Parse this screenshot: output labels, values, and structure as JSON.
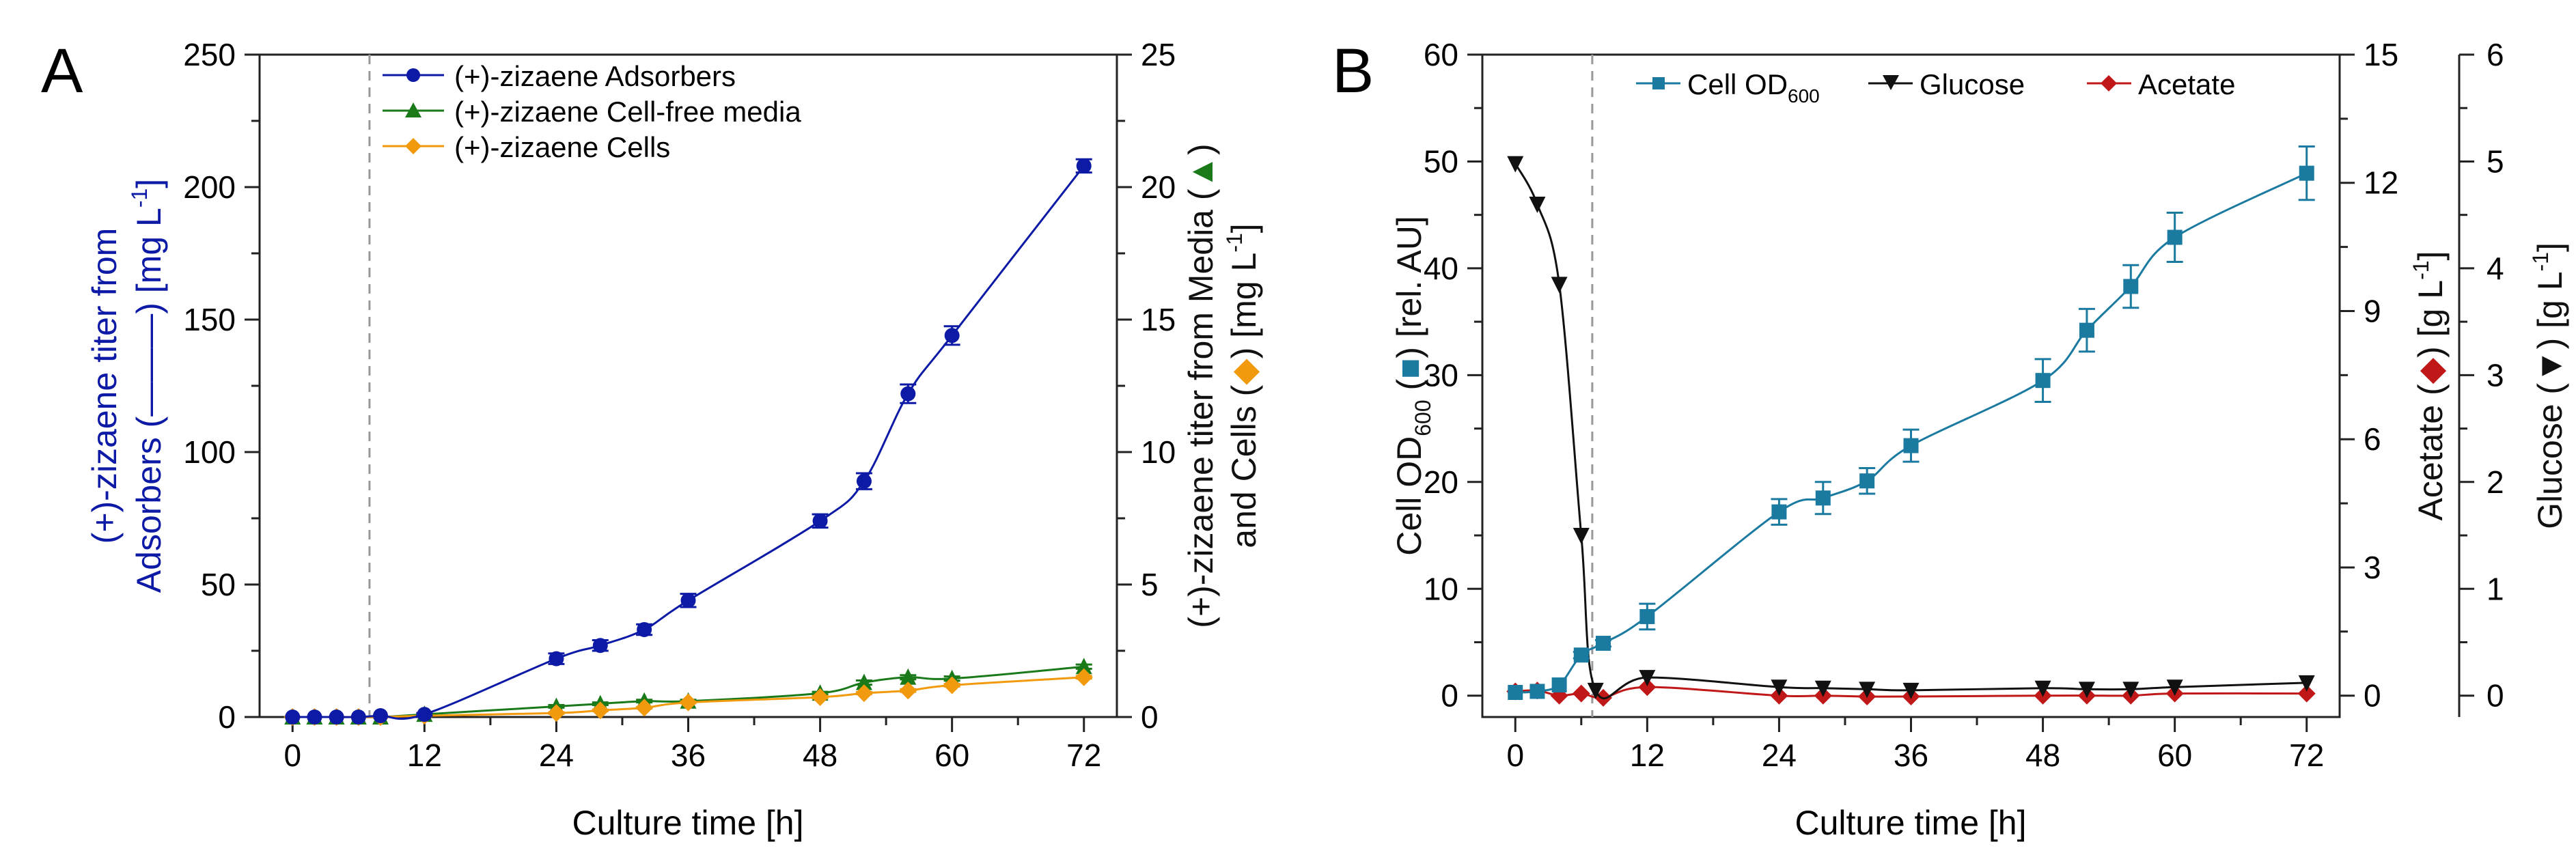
{
  "chart_data": [
    {
      "panel_label": "A",
      "type": "line",
      "xlabel": "Culture time [h]",
      "x_ticks": [
        "0",
        "12",
        "24",
        "36",
        "48",
        "60",
        "72"
      ],
      "xlim": [
        -3,
        75
      ],
      "left_axis": {
        "label_line1": "(+)-zizaene titer from",
        "label_line2_pre": "Adsorbers (",
        "label_line2_post": ") [mg L",
        "label_sup": "-1",
        "label_close": "]",
        "color": "#0d1aa6",
        "ylim": [
          0,
          250
        ],
        "ticks": [
          "0",
          "50",
          "100",
          "150",
          "200",
          "250"
        ]
      },
      "right_axis": {
        "label_line1_pre": "(+)-zizaene titer from Media (",
        "label_line1_post": ")",
        "label_line2_pre": "and  Cells (",
        "label_line2_post": ") [mg L",
        "label_sup": "-1",
        "label_close": "]",
        "ylim": [
          0,
          25
        ],
        "ticks": [
          "0",
          "5",
          "10",
          "15",
          "20",
          "25"
        ]
      },
      "induction_line_x": 7,
      "legend": [
        "(+)-zizaene Adsorbers",
        "(+)-zizaene Cell-free media",
        "(+)-zizaene Cells"
      ],
      "series": [
        {
          "name": "(+)-zizaene Adsorbers",
          "axis": "left",
          "color": "#0d1aa6",
          "marker": "circle",
          "x": [
            0,
            2,
            4,
            6,
            8,
            12,
            24,
            28,
            32,
            36,
            48,
            52,
            56,
            60,
            72
          ],
          "y": [
            0,
            0,
            0,
            0,
            0.5,
            1,
            22,
            27,
            33,
            44,
            74,
            89,
            122,
            144,
            208
          ],
          "err": [
            0,
            0,
            0,
            0,
            0,
            0.5,
            2,
            2,
            2,
            2.5,
            2.5,
            3,
            3.5,
            3.5,
            2.5
          ]
        },
        {
          "name": "(+)-zizaene Cell-free media",
          "axis": "right",
          "color": "#1a7a1a",
          "marker": "triangle",
          "x": [
            0,
            2,
            4,
            6,
            8,
            12,
            24,
            28,
            32,
            36,
            48,
            52,
            56,
            60,
            72
          ],
          "y": [
            0,
            0,
            0,
            0,
            0,
            0.1,
            0.4,
            0.5,
            0.6,
            0.6,
            0.9,
            1.3,
            1.5,
            1.45,
            1.9
          ],
          "err": [
            0,
            0,
            0,
            0,
            0,
            0,
            0.05,
            0.05,
            0.05,
            0.05,
            0.05,
            0.08,
            0.08,
            0.08,
            0.08
          ]
        },
        {
          "name": "(+)-zizaene Cells",
          "axis": "right",
          "color": "#f29a0e",
          "marker": "diamond",
          "x": [
            0,
            2,
            4,
            6,
            8,
            12,
            24,
            28,
            32,
            36,
            48,
            52,
            56,
            60,
            72
          ],
          "y": [
            0,
            0,
            0,
            0,
            0,
            0.05,
            0.15,
            0.25,
            0.35,
            0.55,
            0.75,
            0.9,
            1.0,
            1.2,
            1.5
          ],
          "err": [
            0,
            0,
            0,
            0,
            0,
            0,
            0.03,
            0.03,
            0.03,
            0.03,
            0.04,
            0.04,
            0.05,
            0.05,
            0.05
          ]
        }
      ]
    },
    {
      "panel_label": "B",
      "type": "line",
      "xlabel": "Culture time [h]",
      "x_ticks": [
        "0",
        "12",
        "24",
        "36",
        "48",
        "60",
        "72"
      ],
      "xlim": [
        -3,
        75
      ],
      "left_axis": {
        "label_pre": "Cell OD",
        "label_sub": "600",
        "label_mid": " (",
        "label_post": ") [rel. AU]",
        "ylim": [
          -2,
          60
        ],
        "ticks": [
          "0",
          "10",
          "20",
          "30",
          "40",
          "50",
          "60"
        ]
      },
      "acetate_axis": {
        "label_pre": "Acetate (",
        "label_post": ") [g L",
        "label_sup": "-1",
        "label_close": "]",
        "ylim": [
          -0.5,
          15
        ],
        "ticks": [
          "0",
          "3",
          "6",
          "9",
          "12",
          "15"
        ]
      },
      "glucose_axis": {
        "label_pre": "Glucose (",
        "label_post": ") [g L",
        "label_sup": "-1",
        "label_close": "]",
        "ylim": [
          -0.2,
          6
        ],
        "ticks": [
          "0",
          "1",
          "2",
          "3",
          "4",
          "5",
          "6"
        ]
      },
      "induction_line_x": 7,
      "legend": [
        {
          "pre": "Cell OD",
          "sub": "600"
        },
        {
          "pre": "Glucose",
          "sub": ""
        },
        {
          "pre": "Acetate",
          "sub": ""
        }
      ],
      "series": [
        {
          "name": "Cell OD600",
          "axis": "left",
          "color": "#1b7aa0",
          "marker": "square",
          "x": [
            0,
            2,
            4,
            6,
            8,
            12,
            24,
            28,
            32,
            36,
            48,
            52,
            56,
            60,
            72
          ],
          "y": [
            0.3,
            0.4,
            1.0,
            3.8,
            4.9,
            7.4,
            17.2,
            18.5,
            20.1,
            23.4,
            29.5,
            34.2,
            38.3,
            42.9,
            48.9
          ],
          "err": [
            0,
            0,
            0,
            0.3,
            0.3,
            1.2,
            1.2,
            1.5,
            1.2,
            1.5,
            2.0,
            2.0,
            2.0,
            2.3,
            2.5
          ]
        },
        {
          "name": "Glucose",
          "axis": "glucose",
          "color": "#111111",
          "marker": "triangle-down",
          "x": [
            0,
            2,
            4,
            6,
            7.3,
            12,
            24,
            28,
            32,
            36,
            48,
            52,
            56,
            60,
            72
          ],
          "y": [
            4.98,
            4.6,
            3.85,
            1.5,
            0.05,
            0.17,
            0.08,
            0.07,
            0.06,
            0.05,
            0.07,
            0.06,
            0.06,
            0.08,
            0.12
          ],
          "err": [
            0,
            0,
            0,
            0,
            0,
            0,
            0,
            0,
            0,
            0,
            0,
            0,
            0,
            0,
            0
          ]
        },
        {
          "name": "Acetate",
          "axis": "acetate",
          "color": "#c01818",
          "marker": "diamond",
          "x": [
            0,
            2,
            4,
            6,
            8,
            12,
            24,
            28,
            32,
            36,
            48,
            52,
            56,
            60,
            72
          ],
          "y": [
            0.1,
            0.12,
            0.0,
            0.05,
            -0.05,
            0.2,
            0.0,
            0.0,
            -0.02,
            -0.02,
            0.0,
            0.0,
            0.0,
            0.05,
            0.05
          ],
          "err": [
            0,
            0,
            0,
            0,
            0,
            0,
            0,
            0,
            0,
            0,
            0,
            0,
            0,
            0,
            0
          ]
        }
      ]
    }
  ]
}
